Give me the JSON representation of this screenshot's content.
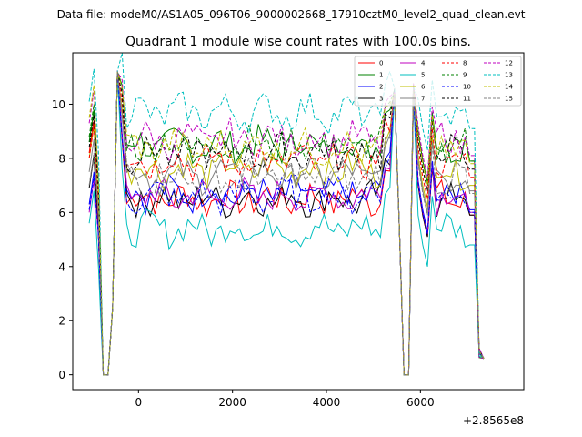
{
  "suptitle": "Data file: modeM0/AS1A05_096T06_9000002668_17910cztM0_level2_quad_clean.evt",
  "chart_data": {
    "type": "line",
    "title": "Quadrant 1 module wise count rates with 100.0s bins.",
    "xlabel": "",
    "ylabel": "",
    "x_offset_label": "+2.8565e8",
    "xlim": [
      -1400,
      8200
    ],
    "ylim": [
      -0.55,
      11.9
    ],
    "xticks": [
      0,
      2000,
      4000,
      6000
    ],
    "xtick_labels": [
      "0",
      "2000",
      "4000",
      "6000"
    ],
    "yticks": [
      0,
      2,
      4,
      6,
      8,
      10
    ],
    "ytick_labels": [
      "0",
      "2",
      "4",
      "6",
      "8",
      "10"
    ],
    "grid": false,
    "legend_position": "top-right",
    "x_start": -1050,
    "x_step": 100,
    "series": [
      {
        "name": "0",
        "color": "#ff0000",
        "dash": "solid",
        "level": 6.5,
        "first": 8.2
      },
      {
        "name": "1",
        "color": "#008000",
        "dash": "solid",
        "level": 8.5,
        "first": 8.6
      },
      {
        "name": "2",
        "color": "#0000ff",
        "dash": "solid",
        "level": 6.7,
        "first": 6.3
      },
      {
        "name": "3",
        "color": "#000000",
        "dash": "solid",
        "level": 6.5,
        "first": 6.9
      },
      {
        "name": "4",
        "color": "#bf00bf",
        "dash": "solid",
        "level": 6.6,
        "first": 6.0
      },
      {
        "name": "5",
        "color": "#00bfbf",
        "dash": "solid",
        "level": 5.4,
        "first": 5.6
      },
      {
        "name": "6",
        "color": "#bfbf00",
        "dash": "solid",
        "level": 7.6,
        "first": 8.0
      },
      {
        "name": "7",
        "color": "#808080",
        "dash": "solid",
        "level": 7.4,
        "first": 7.5
      },
      {
        "name": "8",
        "color": "#ff0000",
        "dash": "dashed",
        "level": 7.9,
        "first": 8.0
      },
      {
        "name": "9",
        "color": "#008000",
        "dash": "dashed",
        "level": 8.5,
        "first": 8.8
      },
      {
        "name": "10",
        "color": "#0000ff",
        "dash": "dashed",
        "level": 6.6,
        "first": 6.1
      },
      {
        "name": "11",
        "color": "#000000",
        "dash": "dashed",
        "level": 8.2,
        "first": 8.4
      },
      {
        "name": "12",
        "color": "#bf00bf",
        "dash": "dashed",
        "level": 8.7,
        "first": 9.3
      },
      {
        "name": "13",
        "color": "#00bfbf",
        "dash": "dashed",
        "level": 9.7,
        "first": 10.1
      },
      {
        "name": "14",
        "color": "#bfbf00",
        "dash": "dashed",
        "level": 8.4,
        "first": 9.5
      },
      {
        "name": "15",
        "color": "#808080",
        "dash": "dashed",
        "level": 7.3,
        "first": 7.0
      }
    ]
  }
}
